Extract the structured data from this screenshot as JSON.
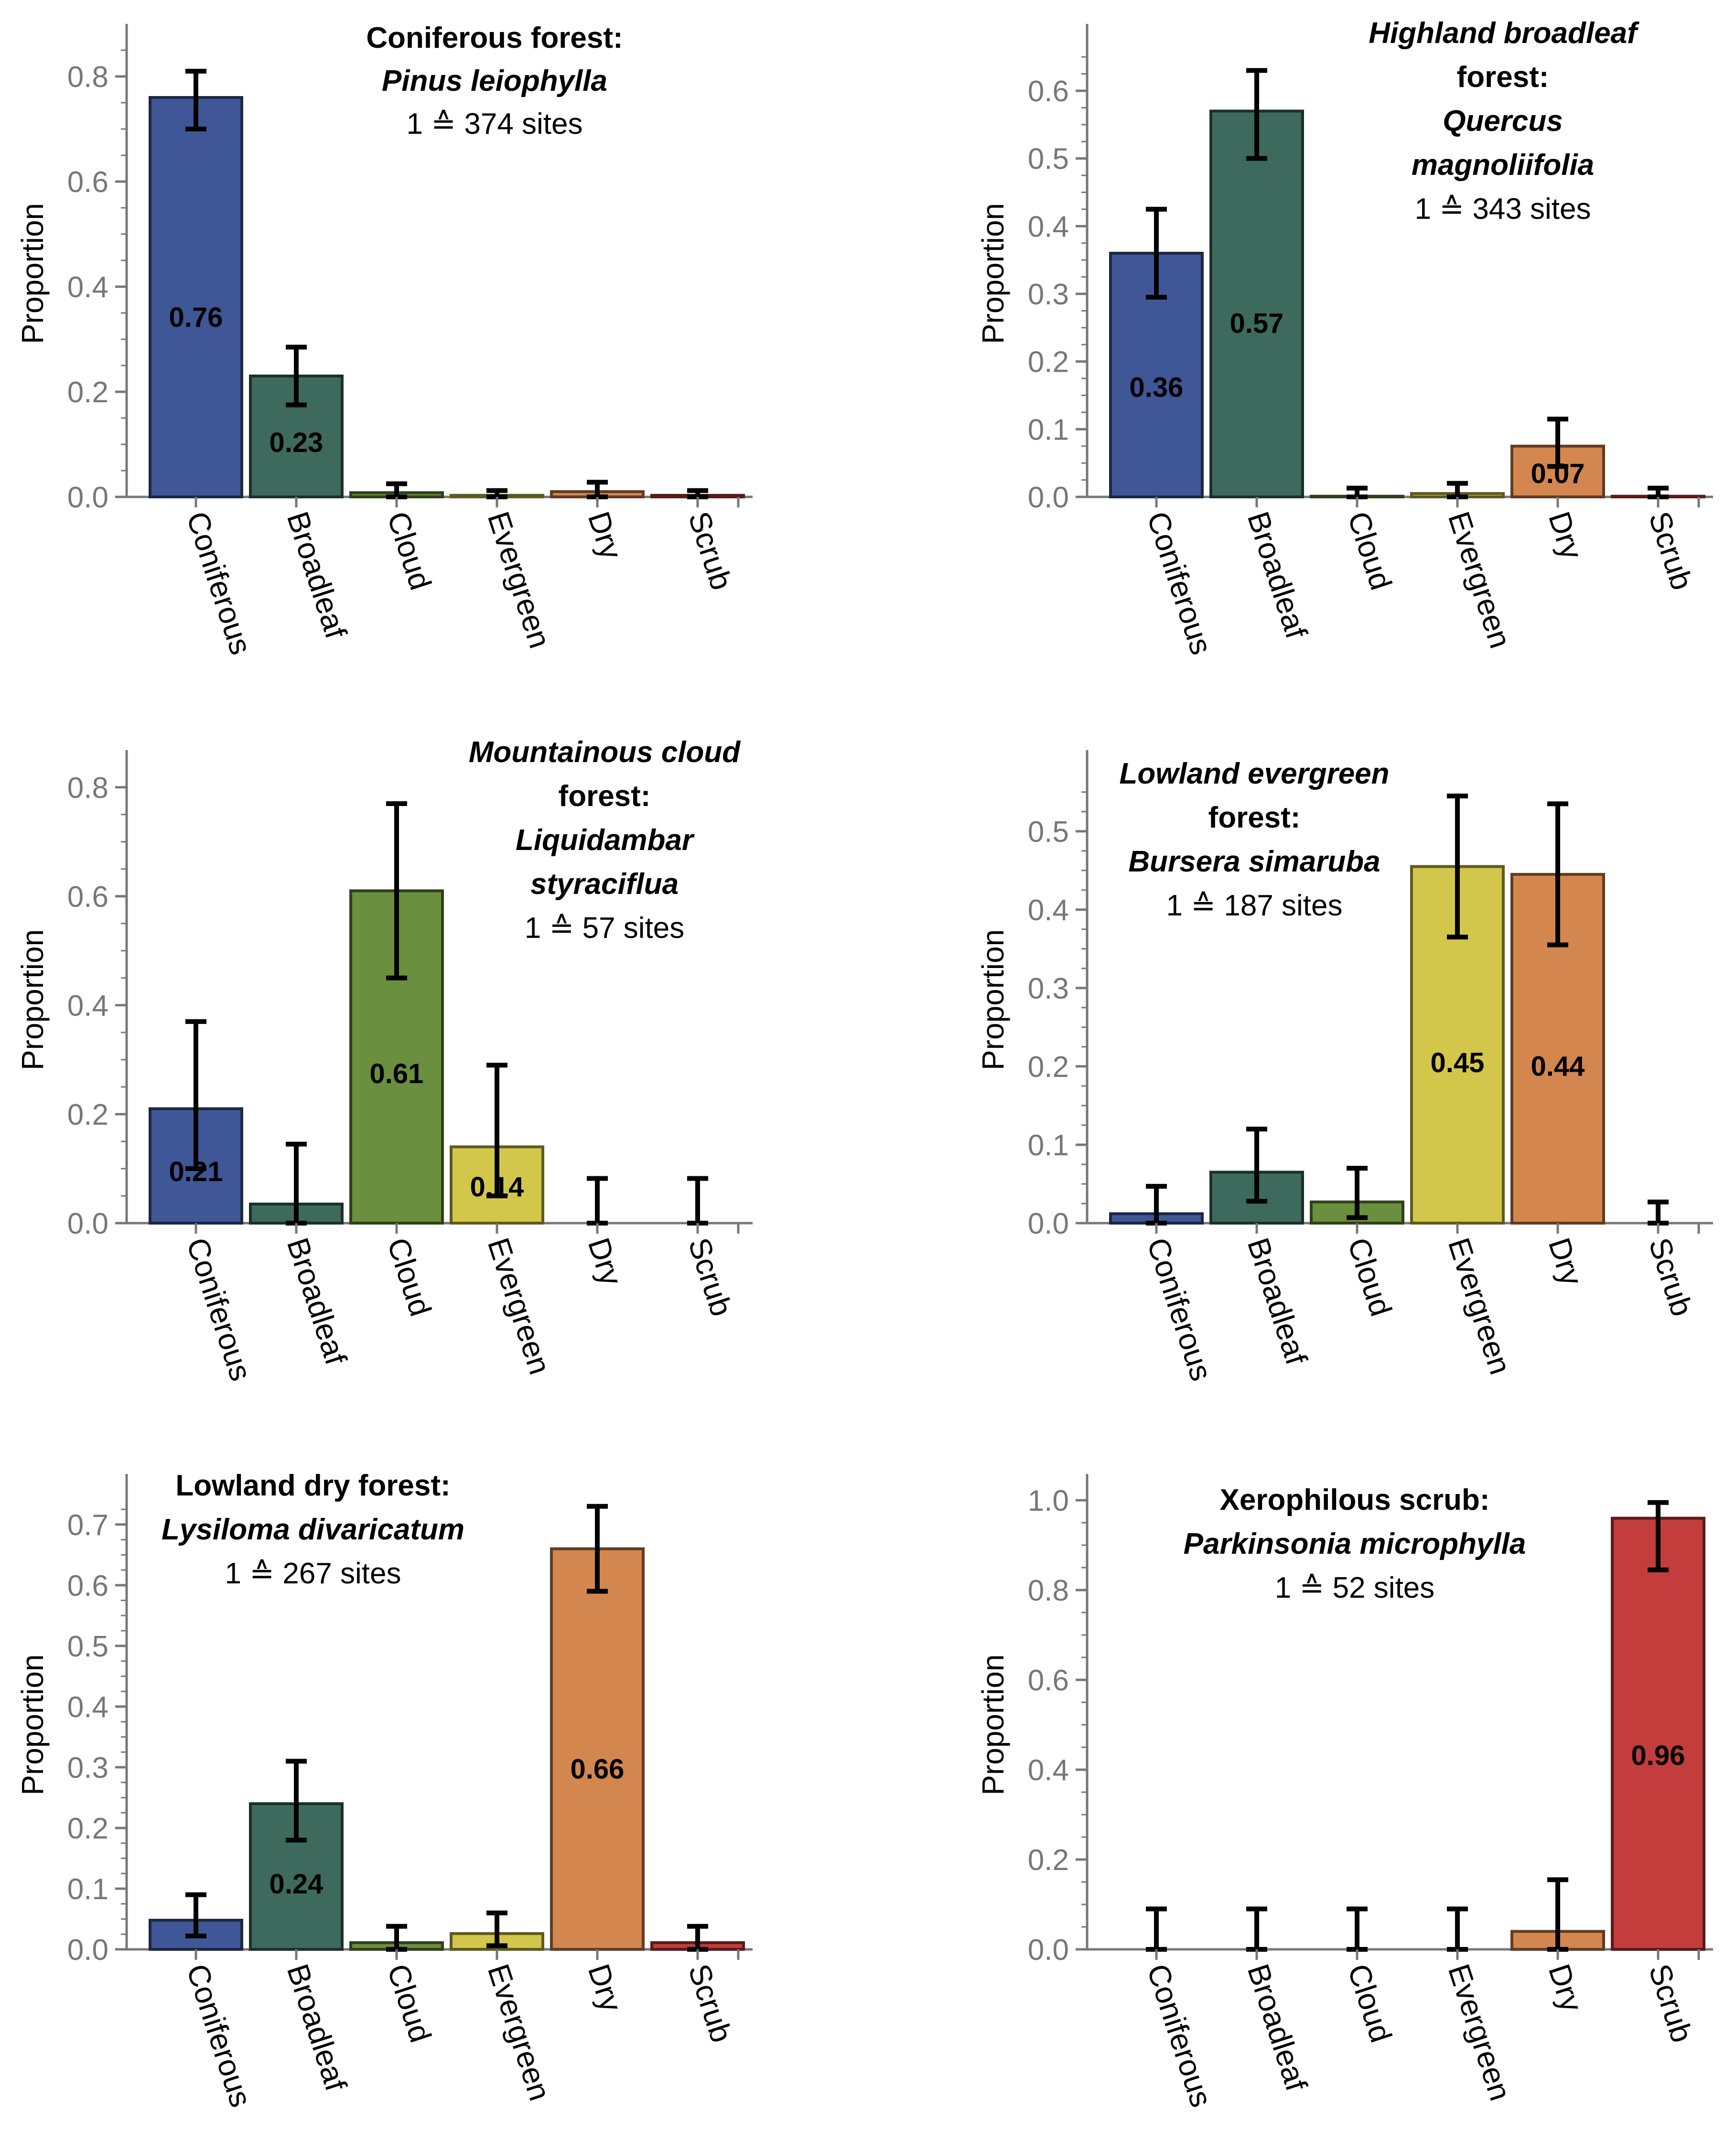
{
  "colors": {
    "Coniferous": "#3f5797",
    "Broadleaf": "#3e6a5e",
    "Cloud": "#6a8f3e",
    "Evergreen": "#d3c74b",
    "Dry": "#d3874f",
    "Scrub": "#c23d3b",
    "axis": "#777777",
    "text": "#000000"
  },
  "chart_data": [
    {
      "type": "bar",
      "panel": "top-left",
      "title": [
        "Coniferous forest:",
        "Pinus leiophylla",
        "1 ≙ 374 sites"
      ],
      "ylabel": "Proportion",
      "categories": [
        "Coniferous",
        "Broadleaf",
        "Cloud",
        "Evergreen",
        "Dry",
        "Scrub"
      ],
      "values": [
        0.76,
        0.23,
        0.008,
        0.003,
        0.01,
        0.003
      ],
      "error_low": [
        0.7,
        0.175,
        0.0,
        0.0,
        0.0,
        0.0
      ],
      "error_high": [
        0.81,
        0.285,
        0.025,
        0.012,
        0.028,
        0.012
      ],
      "value_labels": [
        "0.76",
        "0.23",
        "",
        "",
        "",
        ""
      ],
      "ylim": [
        0,
        0.85
      ],
      "yticks": [
        0.0,
        0.2,
        0.4,
        0.6,
        0.8
      ],
      "ytick_labels": [
        "0.0",
        "0.2",
        "0.4",
        "0.6",
        "0.8"
      ]
    },
    {
      "type": "bar",
      "panel": "top-right",
      "title": [
        "Highland broadleaf",
        "forest:",
        "Quercus",
        "magnoliifolia",
        "1 ≙ 343 sites"
      ],
      "ylabel": "Proportion",
      "categories": [
        "Coniferous",
        "Broadleaf",
        "Cloud",
        "Evergreen",
        "Dry",
        "Scrub"
      ],
      "values": [
        0.36,
        0.57,
        0.001,
        0.005,
        0.075,
        0.001
      ],
      "error_low": [
        0.295,
        0.5,
        0.0,
        0.0,
        0.045,
        0.0
      ],
      "error_high": [
        0.425,
        0.63,
        0.013,
        0.02,
        0.115,
        0.013
      ],
      "value_labels": [
        "0.36",
        "0.57",
        "",
        "",
        "0.07",
        ""
      ],
      "ylim": [
        0,
        0.66
      ],
      "yticks": [
        0.0,
        0.1,
        0.2,
        0.3,
        0.4,
        0.5,
        0.6
      ],
      "ytick_labels": [
        "0.0",
        "0.1",
        "0.2",
        "0.3",
        "0.4",
        "0.5",
        "0.6"
      ]
    },
    {
      "type": "bar",
      "panel": "middle-left",
      "title": [
        "Mountainous cloud",
        "forest:",
        "Liquidambar",
        "styraciflua",
        "1 ≙ 57 sites"
      ],
      "ylabel": "Proportion",
      "categories": [
        "Coniferous",
        "Broadleaf",
        "Cloud",
        "Evergreen",
        "Dry",
        "Scrub"
      ],
      "values": [
        0.21,
        0.035,
        0.61,
        0.14,
        0.0,
        0.0
      ],
      "error_low": [
        0.1,
        0.0,
        0.45,
        0.05,
        0.0,
        0.0
      ],
      "error_high": [
        0.37,
        0.145,
        0.77,
        0.29,
        0.082,
        0.082
      ],
      "value_labels": [
        "0.21",
        "",
        "0.61",
        "0.14",
        "",
        ""
      ],
      "ylim": [
        0,
        0.82
      ],
      "yticks": [
        0.0,
        0.2,
        0.4,
        0.6,
        0.8
      ],
      "ytick_labels": [
        "0.0",
        "0.2",
        "0.4",
        "0.6",
        "0.8"
      ]
    },
    {
      "type": "bar",
      "panel": "middle-right",
      "title": [
        "Lowland evergreen",
        "forest:",
        "Bursera simaruba",
        "1 ≙ 187 sites"
      ],
      "ylabel": "Proportion",
      "categories": [
        "Coniferous",
        "Broadleaf",
        "Cloud",
        "Evergreen",
        "Dry",
        "Scrub"
      ],
      "values": [
        0.012,
        0.065,
        0.027,
        0.455,
        0.445,
        0.0
      ],
      "error_low": [
        0.0,
        0.028,
        0.007,
        0.365,
        0.355,
        0.0
      ],
      "error_high": [
        0.047,
        0.12,
        0.07,
        0.545,
        0.535,
        0.027
      ],
      "value_labels": [
        "",
        "",
        "",
        "0.45",
        "0.44",
        ""
      ],
      "ylim": [
        0,
        0.57
      ],
      "yticks": [
        0.0,
        0.1,
        0.2,
        0.3,
        0.4,
        0.5
      ],
      "ytick_labels": [
        "0.0",
        "0.1",
        "0.2",
        "0.3",
        "0.4",
        "0.5"
      ]
    },
    {
      "type": "bar",
      "panel": "bottom-left",
      "title": [
        "Lowland dry forest:",
        "Lysiloma divaricatum",
        "1 ≙ 267 sites"
      ],
      "ylabel": "Proportion",
      "categories": [
        "Coniferous",
        "Broadleaf",
        "Cloud",
        "Evergreen",
        "Dry",
        "Scrub"
      ],
      "values": [
        0.048,
        0.24,
        0.011,
        0.026,
        0.66,
        0.011
      ],
      "error_low": [
        0.022,
        0.18,
        0.0,
        0.006,
        0.59,
        0.0
      ],
      "error_high": [
        0.09,
        0.31,
        0.038,
        0.06,
        0.73,
        0.038
      ],
      "value_labels": [
        "",
        "0.24",
        "",
        "",
        "0.66",
        ""
      ],
      "ylim": [
        0,
        0.74
      ],
      "yticks": [
        0.0,
        0.1,
        0.2,
        0.3,
        0.4,
        0.5,
        0.6,
        0.7
      ],
      "ytick_labels": [
        "0.0",
        "0.1",
        "0.2",
        "0.3",
        "0.4",
        "0.5",
        "0.6",
        "0.7"
      ]
    },
    {
      "type": "bar",
      "panel": "bottom-right",
      "title": [
        "Xerophilous scrub:",
        "Parkinsonia microphylla",
        "1 ≙ 52 sites"
      ],
      "ylabel": "Proportion",
      "categories": [
        "Coniferous",
        "Broadleaf",
        "Cloud",
        "Evergreen",
        "Dry",
        "Scrub"
      ],
      "values": [
        0.0,
        0.0,
        0.0,
        0.0,
        0.04,
        0.96
      ],
      "error_low": [
        0.0,
        0.0,
        0.0,
        0.0,
        0.0,
        0.845
      ],
      "error_high": [
        0.09,
        0.09,
        0.09,
        0.09,
        0.155,
        0.995
      ],
      "value_labels": [
        "",
        "",
        "",
        "",
        "",
        "0.96"
      ],
      "ylim": [
        0,
        1.0
      ],
      "yticks": [
        0.0,
        0.2,
        0.4,
        0.6,
        0.8,
        1.0
      ],
      "ytick_labels": [
        "0.0",
        "0.2",
        "0.4",
        "0.6",
        "0.8",
        "1.0"
      ]
    }
  ]
}
